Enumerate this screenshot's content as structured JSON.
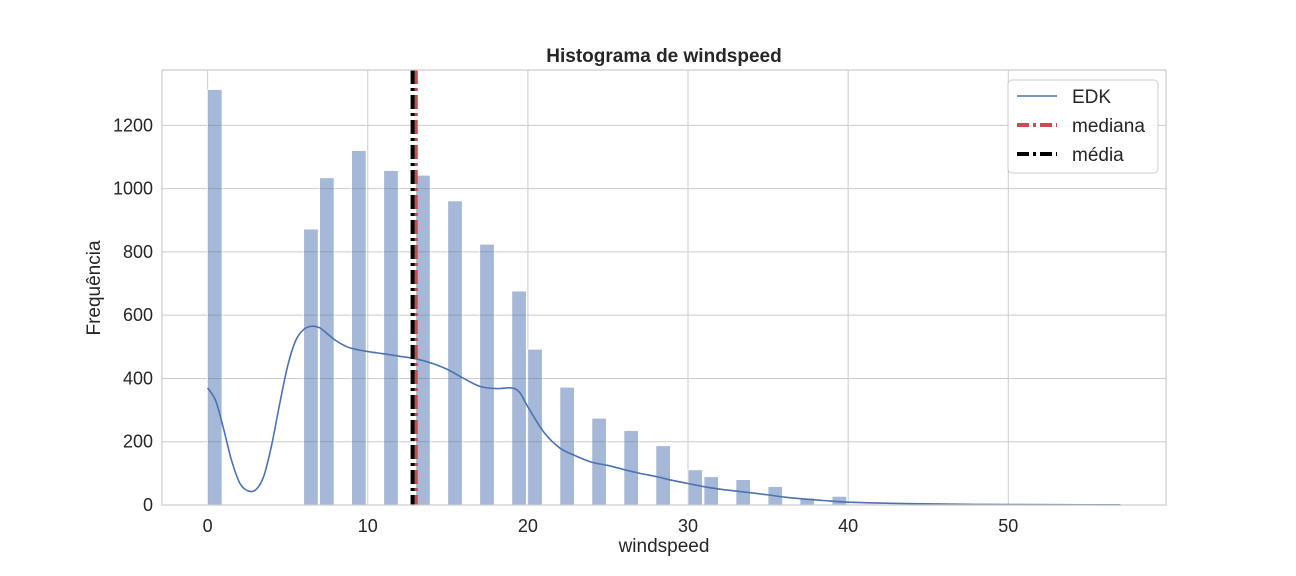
{
  "chart_data": {
    "type": "bar",
    "title": "Histograma de windspeed",
    "xlabel": "windspeed",
    "ylabel": "Frequência",
    "xlim": [
      -2.85,
      59.85
    ],
    "ylim": [
      0,
      1375
    ],
    "xticks": [
      0,
      10,
      20,
      30,
      40,
      50
    ],
    "yticks": [
      0,
      200,
      400,
      600,
      800,
      1000,
      1200
    ],
    "grid": true,
    "legend_position": "top-right",
    "histogram": {
      "bin_width": 0.8951,
      "color": "#4c72b0",
      "opacity": 0.5,
      "bars": [
        {
          "x": 0.0,
          "count": 1313
        },
        {
          "x": 6.0032,
          "count": 872
        },
        {
          "x": 6.9979,
          "count": 1034
        },
        {
          "x": 8.9981,
          "count": 1120
        },
        {
          "x": 11.0014,
          "count": 1057
        },
        {
          "x": 12.998,
          "count": 1042
        },
        {
          "x": 15.0013,
          "count": 961
        },
        {
          "x": 16.9979,
          "count": 824
        },
        {
          "x": 19.0012,
          "count": 676
        },
        {
          "x": 19.9995,
          "count": 492
        },
        {
          "x": 22.0028,
          "count": 372
        },
        {
          "x": 23.9994,
          "count": 274
        },
        {
          "x": 26.0027,
          "count": 235
        },
        {
          "x": 27.9993,
          "count": 187
        },
        {
          "x": 30.0026,
          "count": 111
        },
        {
          "x": 31.0009,
          "count": 89
        },
        {
          "x": 32.9975,
          "count": 80
        },
        {
          "x": 35.0008,
          "count": 58
        },
        {
          "x": 36.9974,
          "count": 22
        },
        {
          "x": 39.0007,
          "count": 27
        },
        {
          "x": 40.9973,
          "count": 3
        },
        {
          "x": 43.0006,
          "count": 3
        },
        {
          "x": 43.9989,
          "count": 3
        },
        {
          "x": 46.0022,
          "count": 2
        },
        {
          "x": 47.9988,
          "count": 2
        },
        {
          "x": 50.0021,
          "count": 1
        },
        {
          "x": 51.9987,
          "count": 1
        },
        {
          "x": 54.002,
          "count": 1
        },
        {
          "x": 56.9969,
          "count": 2
        }
      ]
    },
    "kde": {
      "name": "EDK",
      "color": "#4c72b0",
      "x": [
        0,
        0.5,
        1,
        1.5,
        2,
        2.5,
        3,
        3.5,
        4,
        4.5,
        5,
        5.5,
        6,
        6.5,
        7,
        7.5,
        8,
        8.5,
        9,
        10,
        11,
        12,
        13,
        14,
        15,
        16,
        17,
        18,
        19,
        19.5,
        20,
        21,
        22,
        23,
        24,
        25,
        26,
        27,
        28,
        29,
        30,
        31,
        32,
        33,
        34,
        35,
        36,
        37,
        38,
        39,
        40,
        42,
        44,
        46,
        48,
        50,
        53,
        57
      ],
      "y": [
        370,
        330,
        240,
        140,
        70,
        45,
        48,
        90,
        190,
        320,
        440,
        520,
        555,
        565,
        560,
        540,
        520,
        505,
        495,
        485,
        478,
        470,
        462,
        448,
        428,
        400,
        375,
        368,
        370,
        355,
        310,
        230,
        180,
        155,
        135,
        125,
        112,
        100,
        90,
        78,
        68,
        58,
        50,
        44,
        38,
        32,
        25,
        20,
        16,
        12,
        9,
        6,
        4,
        3,
        2,
        1.5,
        1,
        0.5
      ]
    },
    "lines": [
      {
        "name": "mediana",
        "x": 12.998,
        "color": "#c44e52",
        "style": "dashdot"
      },
      {
        "name": "média",
        "x": 12.7994,
        "color": "#000000",
        "style": "dashdot"
      }
    ]
  }
}
